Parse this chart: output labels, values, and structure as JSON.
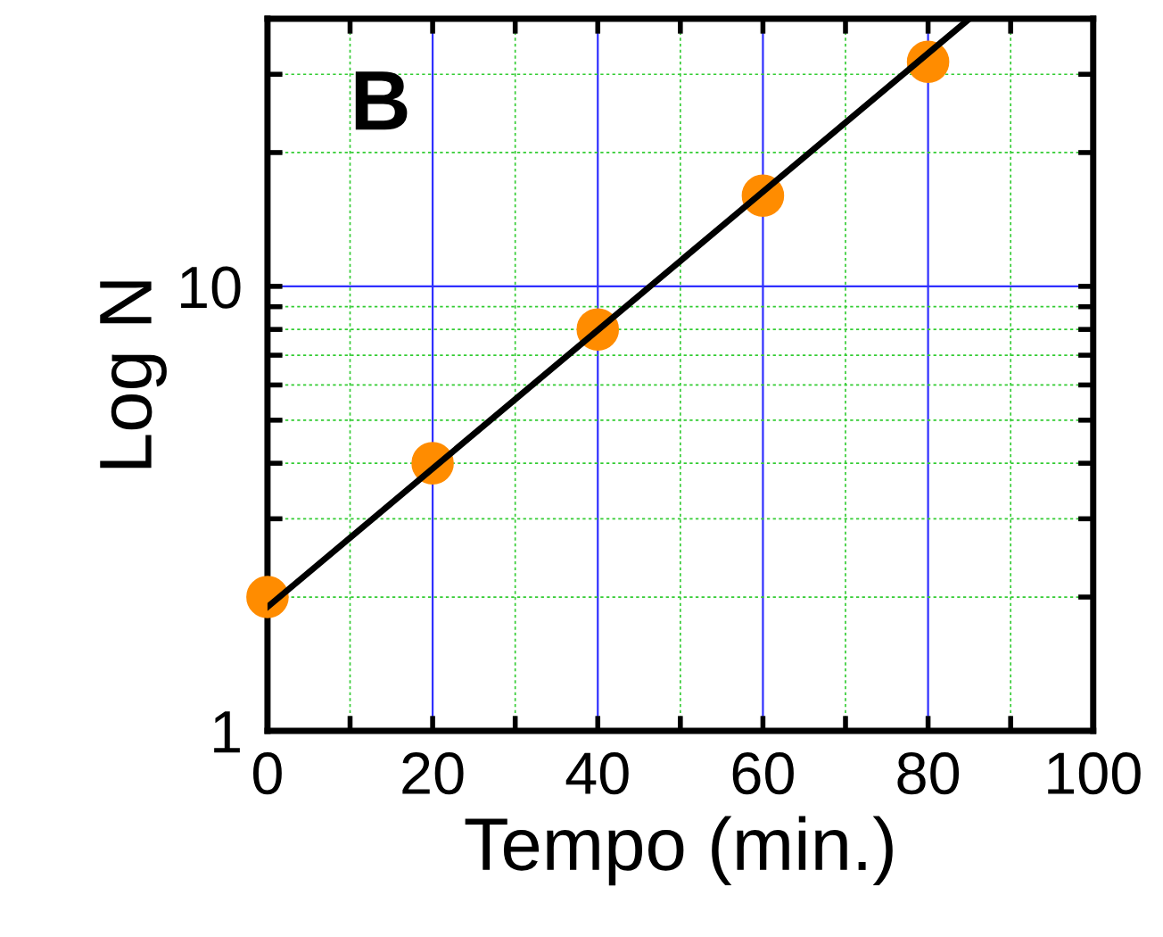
{
  "chart_data": {
    "type": "scatter",
    "xlabel": "Tempo (min.)",
    "ylabel": "Log N",
    "annotations": [
      "B"
    ],
    "log": "y",
    "grid": true,
    "marker": "circle",
    "x": [
      0,
      20,
      40,
      60,
      80
    ],
    "series": [
      {
        "color": "#ff8c00",
        "values": [
          2,
          4,
          8,
          16,
          32
        ]
      },
      {
        "type": "line",
        "color": "#000000",
        "x": [
          0,
          85
        ],
        "values": [
          1.9,
          40
        ],
        "marker": "none",
        "line_style": "solid"
      }
    ],
    "xlim": [
      0,
      100
    ],
    "xticks": [
      0,
      {
        "value": 10,
        "label": null
      },
      20,
      {
        "value": 30,
        "label": null
      },
      40,
      {
        "value": 50,
        "label": null
      },
      60,
      {
        "value": 70,
        "label": null
      },
      80,
      {
        "value": 90,
        "label": null
      },
      100
    ],
    "ylim": [
      1,
      40
    ],
    "yticks": [
      1,
      {
        "value": 2,
        "label": null
      },
      {
        "value": 3,
        "label": null
      },
      {
        "value": 4,
        "label": null
      },
      {
        "value": 5,
        "label": null
      },
      {
        "value": 6,
        "label": null
      },
      {
        "value": 7,
        "label": null
      },
      {
        "value": 8,
        "label": null
      },
      {
        "value": 9,
        "label": null
      },
      10,
      {
        "value": 20,
        "label": null
      },
      {
        "value": 30,
        "label": null
      },
      {
        "value": 40,
        "label": null
      }
    ]
  }
}
